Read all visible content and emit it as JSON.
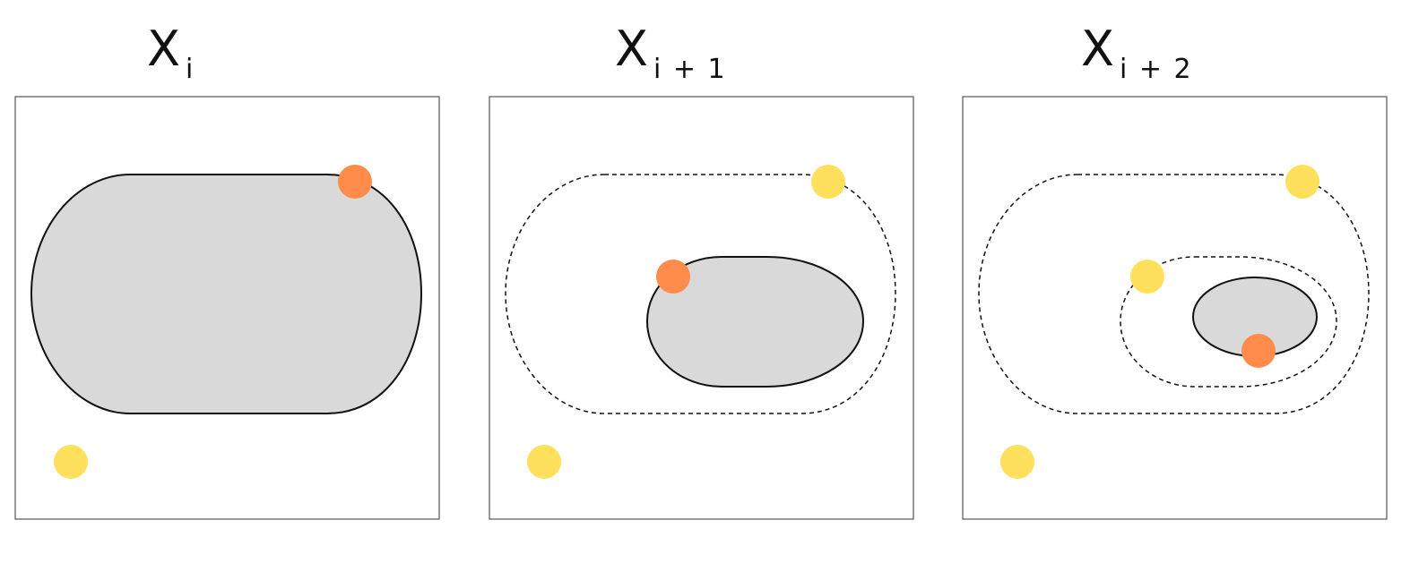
{
  "panels": [
    {
      "title": "X",
      "subscript": "i"
    },
    {
      "title": "X",
      "subscript": "i + 1"
    },
    {
      "title": "X",
      "subscript": "i + 2"
    }
  ],
  "colors": {
    "region_fill": "#d9d9d9",
    "orange_point": "#ff8c4a",
    "yellow_point": "#ffe05c",
    "frame_stroke": "#555555",
    "curve_stroke": "#111111"
  }
}
